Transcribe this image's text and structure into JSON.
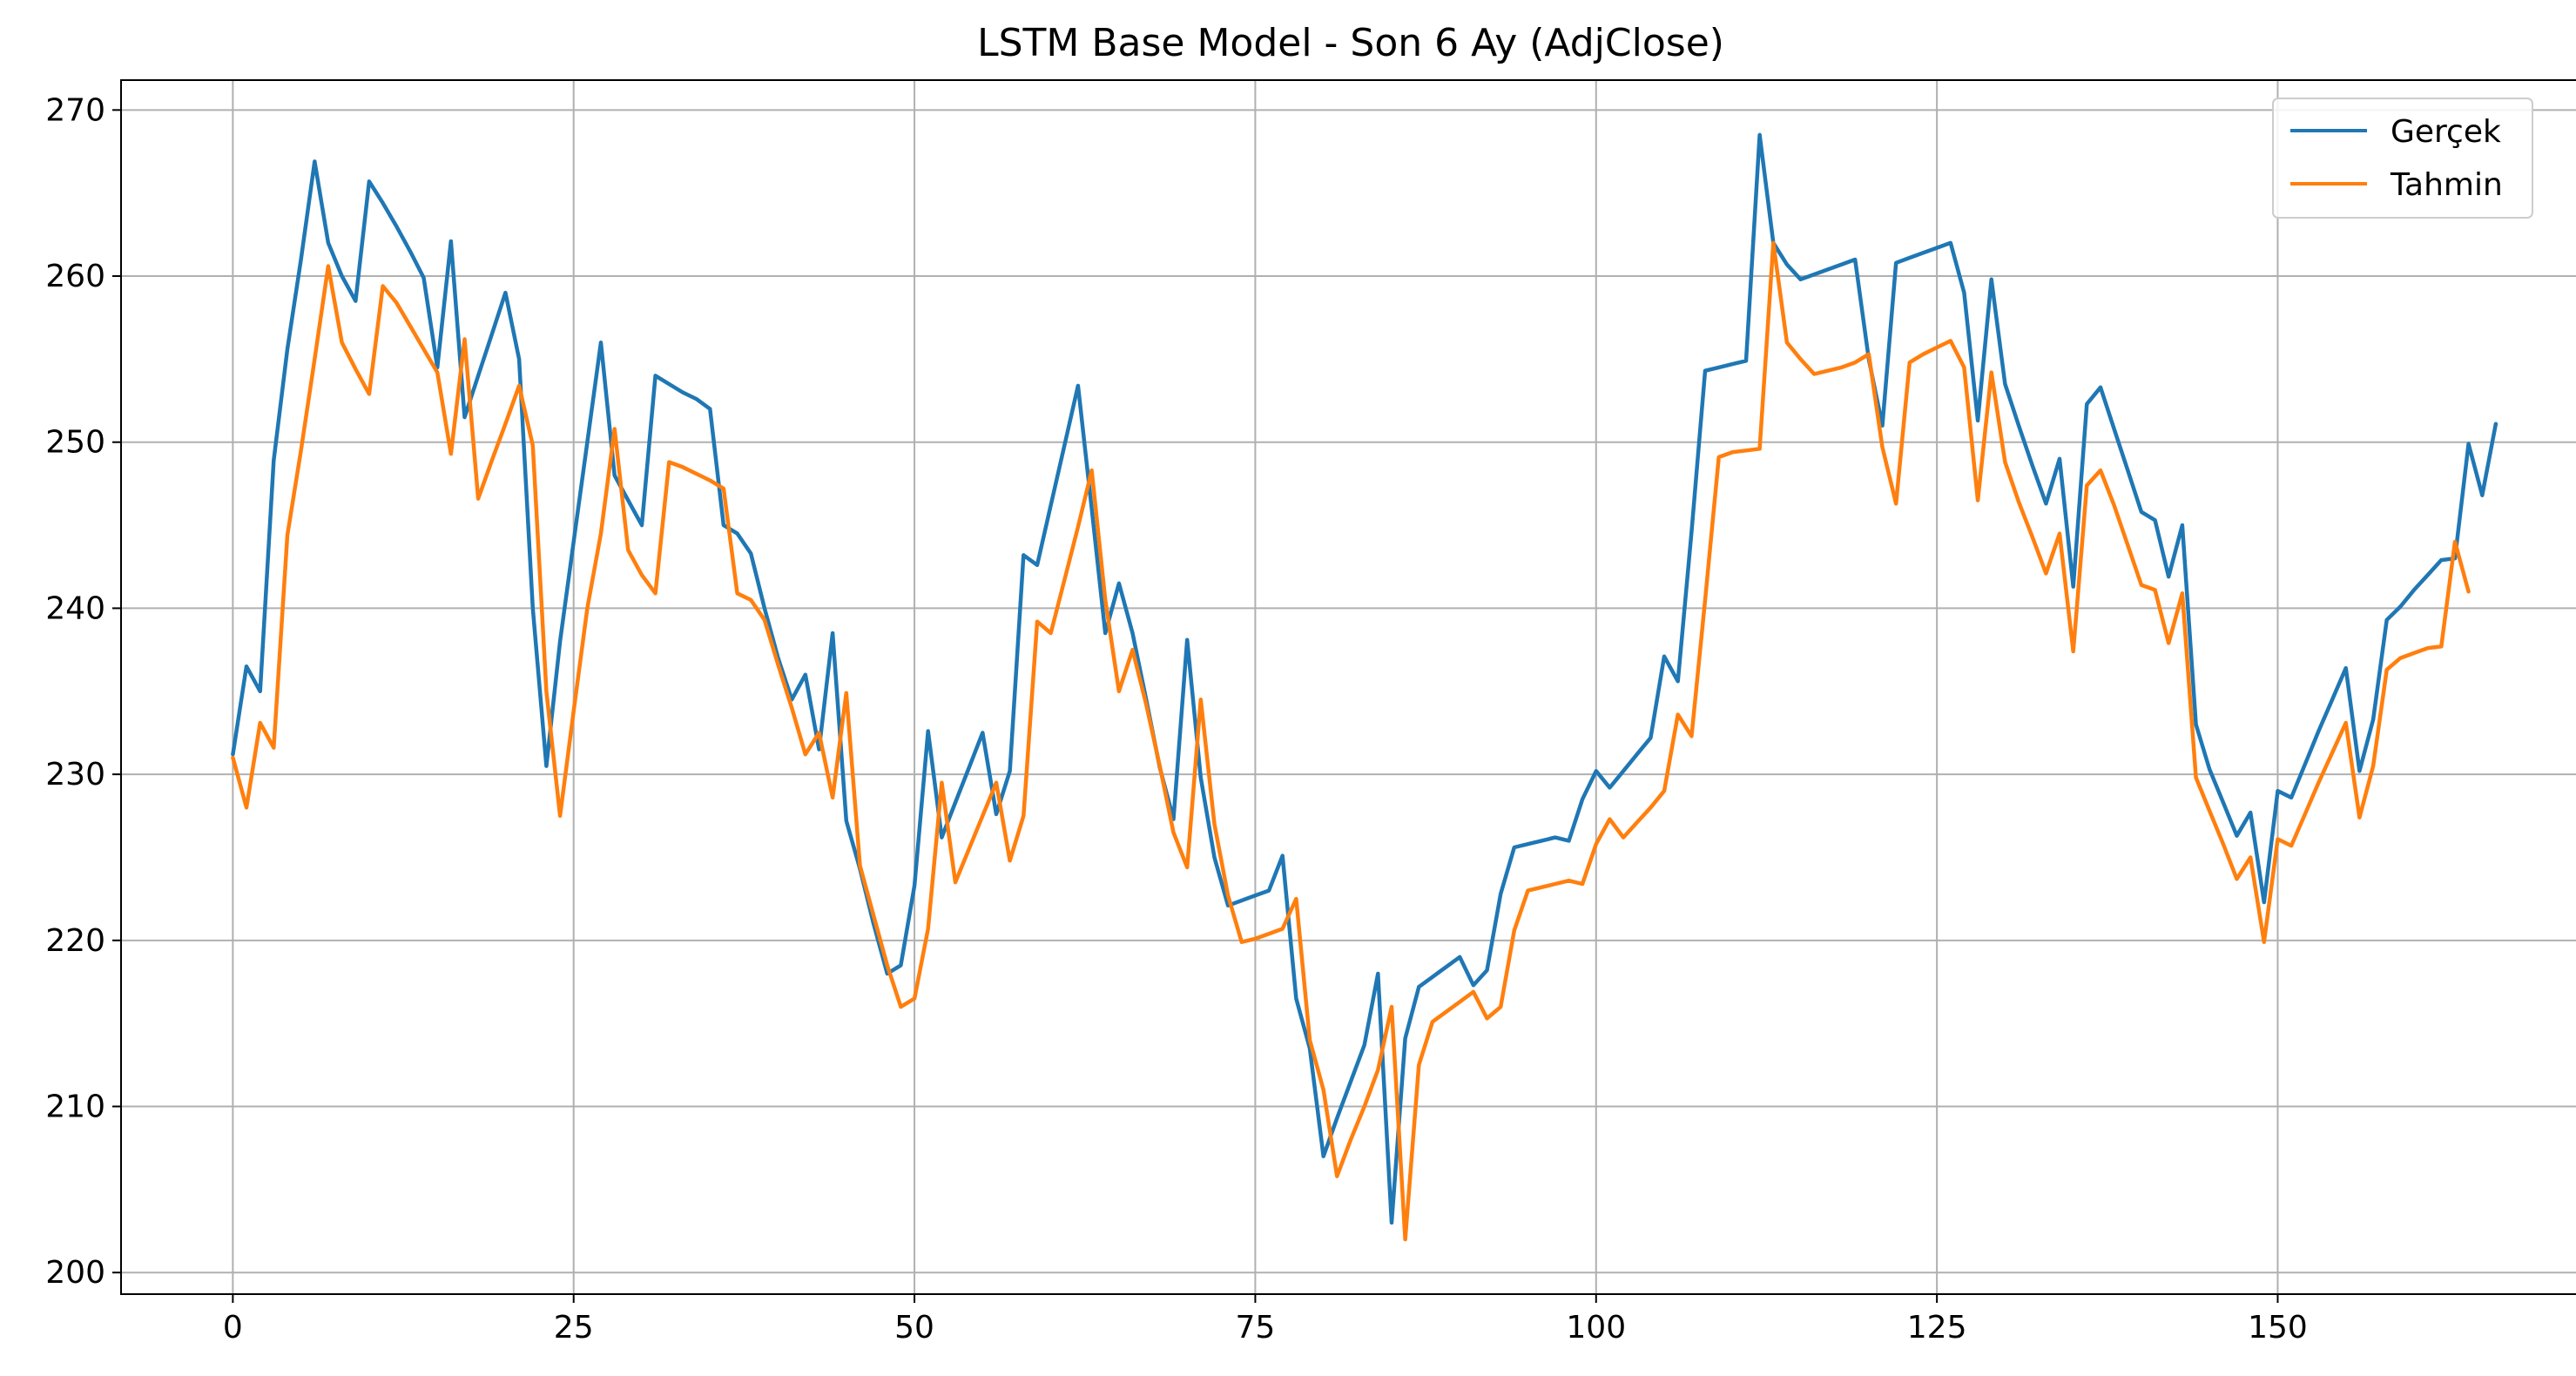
{
  "chart_data": {
    "type": "line",
    "title": "LSTM Base Model - Son 6 Ay (AdjClose)",
    "xlabel": "",
    "ylabel": "",
    "xlim": [
      -8.2,
      172.2
    ],
    "ylim": [
      198.7,
      271.8
    ],
    "x_ticks": [
      0,
      25,
      50,
      75,
      100,
      125,
      150
    ],
    "y_ticks": [
      200,
      210,
      220,
      230,
      240,
      250,
      260,
      270
    ],
    "grid": true,
    "legend_position": "top-right",
    "series": [
      {
        "name": "Gerçek",
        "color": "#1f77b4",
        "values": [
          231.2,
          236.5,
          235.0,
          248.9,
          255.6,
          261.0,
          266.9,
          262.0,
          260.0,
          258.5,
          265.7,
          264.4,
          263.0,
          261.5,
          259.9,
          254.5,
          262.1,
          251.5,
          254.0,
          256.5,
          259.0,
          255.0,
          240.0,
          230.5,
          238.0,
          244.0,
          250.0,
          256.0,
          248.0,
          246.5,
          245.0,
          254.0,
          253.5,
          253.0,
          252.6,
          252.0,
          245.0,
          244.5,
          243.3,
          240.0,
          237.0,
          234.5,
          236.0,
          231.5,
          238.5,
          227.2,
          224.3,
          221.0,
          218.0,
          218.5,
          223.3,
          232.6,
          226.2,
          228.3,
          230.4,
          232.5,
          227.6,
          230.2,
          243.2,
          242.6,
          246.2,
          249.8,
          253.4,
          246.0,
          238.5,
          241.5,
          238.5,
          234.5,
          230.4,
          227.3,
          238.1,
          229.8,
          225.0,
          222.1,
          222.4,
          222.7,
          223.0,
          225.1,
          216.5,
          213.5,
          207.0,
          209.3,
          211.5,
          213.7,
          218.0,
          203.0,
          214.1,
          217.2,
          217.8,
          218.4,
          219.0,
          217.3,
          218.2,
          222.8,
          225.6,
          225.8,
          226.0,
          226.2,
          226.0,
          228.5,
          230.2,
          229.2,
          230.2,
          231.2,
          232.2,
          237.1,
          235.6,
          244.6,
          254.3,
          254.5,
          254.7,
          254.9,
          268.5,
          262.0,
          260.7,
          259.8,
          260.1,
          260.4,
          260.7,
          261.0,
          255.0,
          251.0,
          260.8,
          261.1,
          261.4,
          261.7,
          262.0,
          259.0,
          251.3,
          259.8,
          253.5,
          251.0,
          248.6,
          246.3,
          249.0,
          241.3,
          252.3,
          253.3,
          250.8,
          248.3,
          245.8,
          245.3,
          241.9,
          245.0,
          233.0,
          230.3,
          228.3,
          226.3,
          227.7,
          222.3,
          229.0,
          228.6,
          230.6,
          232.6,
          234.5,
          236.4,
          230.2,
          233.3,
          239.3,
          240.1,
          241.1,
          242.0,
          242.9,
          243.0,
          249.9,
          246.8,
          251.1
        ]
      },
      {
        "name": "Tahmin",
        "color": "#ff7f0e",
        "values": [
          231.0,
          228.0,
          233.1,
          231.6,
          244.4,
          249.5,
          255.0,
          260.6,
          256.0,
          254.4,
          252.9,
          259.4,
          258.4,
          257.0,
          255.6,
          254.2,
          249.3,
          256.2,
          246.6,
          248.9,
          251.1,
          253.4,
          249.8,
          235.0,
          227.5,
          233.8,
          240.0,
          244.5,
          250.8,
          243.5,
          242.0,
          240.9,
          248.8,
          248.5,
          248.1,
          247.7,
          247.2,
          240.9,
          240.5,
          239.3,
          236.6,
          234.0,
          231.2,
          232.5,
          228.6,
          234.9,
          224.5,
          221.5,
          218.5,
          216.0,
          216.5,
          220.7,
          229.5,
          223.5,
          225.5,
          227.5,
          229.5,
          224.8,
          227.5,
          239.2,
          238.5,
          241.7,
          244.9,
          248.3,
          240.5,
          235.0,
          237.5,
          234.2,
          230.5,
          226.5,
          224.4,
          234.5,
          227.0,
          222.7,
          219.9,
          220.1,
          220.4,
          220.7,
          222.5,
          214.0,
          211.0,
          205.8,
          208.0,
          210.0,
          212.2,
          216.0,
          202.0,
          212.5,
          215.1,
          215.7,
          216.3,
          216.9,
          215.3,
          216.0,
          220.6,
          223.0,
          223.2,
          223.4,
          223.6,
          223.4,
          225.8,
          227.3,
          226.2,
          227.1,
          228.0,
          229.0,
          233.6,
          232.3,
          240.5,
          249.1,
          249.4,
          249.5,
          249.6,
          262.0,
          256.0,
          255.0,
          254.1,
          254.3,
          254.5,
          254.8,
          255.3,
          249.7,
          246.3,
          254.8,
          255.3,
          255.7,
          256.1,
          254.5,
          246.5,
          254.2,
          248.8,
          246.4,
          244.3,
          242.1,
          244.5,
          237.4,
          247.4,
          248.3,
          246.2,
          243.8,
          241.4,
          241.1,
          237.9,
          240.9,
          229.8,
          227.8,
          225.8,
          223.7,
          225.0,
          219.9,
          226.1,
          225.7,
          227.6,
          229.5,
          231.3,
          233.1,
          227.4,
          230.5,
          236.3,
          237.0,
          237.3,
          237.6,
          237.7,
          244.0,
          241.0
        ]
      }
    ]
  }
}
